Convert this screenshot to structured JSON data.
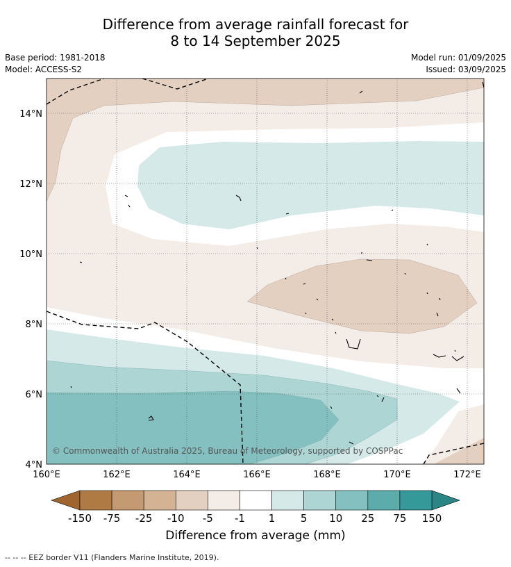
{
  "header": {
    "title_line1": "Difference from average rainfall forecast for",
    "title_line2": "8 to 14 September 2025",
    "base_period": "Base period: 1981-2018",
    "model": "Model: ACCESS-S2",
    "model_run": "Model run: 01/09/2025",
    "issued": "Issued: 03/09/2025"
  },
  "map": {
    "lat_ticks": [
      "14°N",
      "12°N",
      "10°N",
      "8°N",
      "6°N",
      "4°N"
    ],
    "lon_ticks": [
      "160°E",
      "162°E",
      "164°E",
      "166°E",
      "168°E",
      "170°E",
      "172°E"
    ],
    "copyright": "© Commonwealth of Australia 2025, Bureau of Meteorology, supported by COSPPac"
  },
  "colorbar": {
    "title": "Difference from average (mm)",
    "labels": [
      "-150",
      "-75",
      "-25",
      "-10",
      "-5",
      "-1",
      "1",
      "5",
      "10",
      "25",
      "75",
      "150"
    ],
    "colors": {
      "low_extend": "#a0652f",
      "bins": [
        "#b07a45",
        "#c49a72",
        "#d4b394",
        "#e3d0c0",
        "#f4ece6",
        "#ffffff",
        "#d5e9e8",
        "#acd5d4",
        "#83c0bf",
        "#5bacab",
        "#349998"
      ],
      "high_extend": "#2a8584"
    }
  },
  "footnote": "-- -- -- EEZ border V11 (Flanders Marine Institute, 2019)."
}
